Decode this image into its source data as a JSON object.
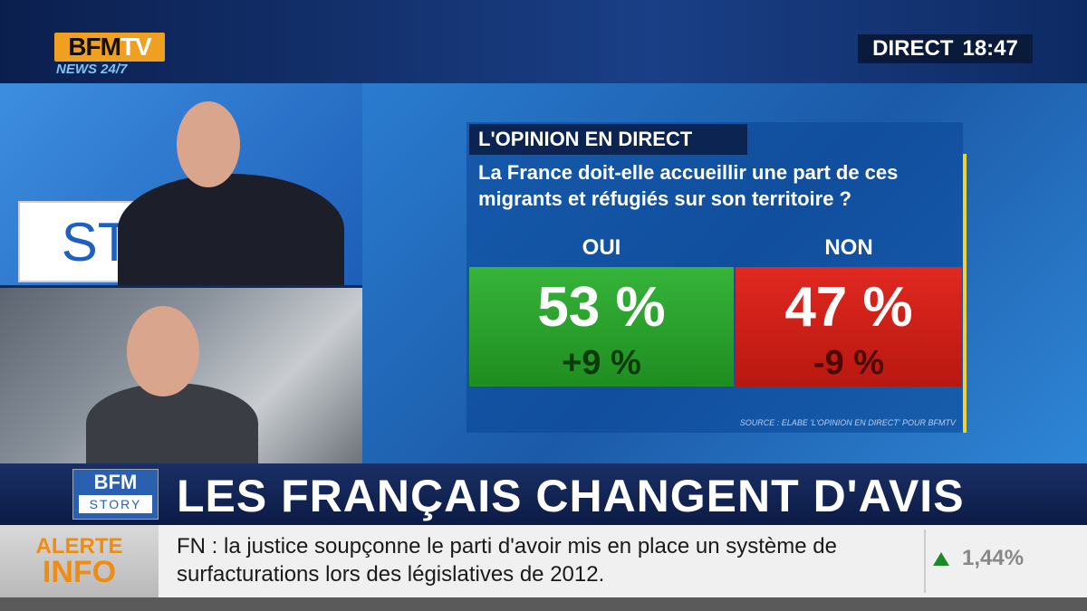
{
  "channel": {
    "logo_bfm": "BFM",
    "logo_tv": "TV",
    "logo_sub": "NEWS 24/7",
    "direct_label": "DIRECT",
    "time": "18:47"
  },
  "studio": {
    "backdrop_text": "STORY"
  },
  "poll": {
    "title": "L'OPINION EN DIRECT",
    "question": "La France doit-elle accueillir une part de ces migrants et réfugiés sur son territoire ?",
    "answers": [
      {
        "label": "OUI",
        "percent": "53 %",
        "change": "+9 %",
        "color": "#2aa02c"
      },
      {
        "label": "NON",
        "percent": "47 %",
        "change": "-9 %",
        "color": "#d02018"
      }
    ],
    "source": "SOURCE : ELABE 'L'OPINION EN DIRECT' POUR BFMTV"
  },
  "chart_data": {
    "type": "bar",
    "title": "L'OPINION EN DIRECT",
    "categories": [
      "OUI",
      "NON"
    ],
    "values": [
      53,
      47
    ],
    "changes": [
      9,
      -9
    ],
    "unit": "%"
  },
  "headline": {
    "show_logo_top": "BFM",
    "show_logo_bottom": "STORY",
    "text": "LES FRANÇAIS CHANGENT D'AVIS"
  },
  "ticker": {
    "alert_line1": "ALERTE",
    "alert_line2": "INFO",
    "text": "FN : la justice soupçonne le parti d'avoir mis en place un système de surfacturations lors des législatives de 2012.",
    "stock_value": "1,44%",
    "stock_direction": "up"
  }
}
